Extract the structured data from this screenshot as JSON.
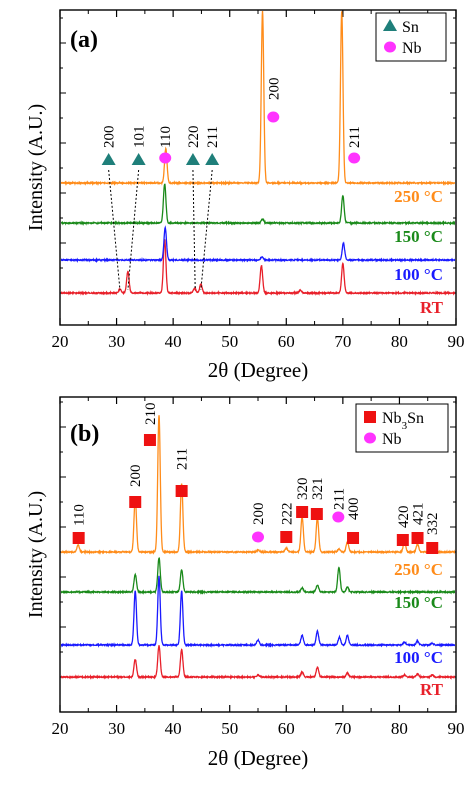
{
  "colors": {
    "RT": "#e8202a",
    "100 °C": "#1a1aff",
    "150 °C": "#1a8a1a",
    "250 °C": "#ff8c1a",
    "sn_marker": "#1f7f7a",
    "nb_marker": "#ff33ff",
    "nb3sn_marker": "#ee1111"
  },
  "chart_data": [
    {
      "type": "line",
      "panel_label": "(a)",
      "xlabel": "2θ (Degree)",
      "ylabel": "Intensity (A.U.)",
      "xlim": [
        20,
        90
      ],
      "xticks": [
        20,
        30,
        40,
        50,
        60,
        70,
        80,
        90
      ],
      "grid": false,
      "legend_position": "top-right",
      "legend": [
        {
          "marker": "triangle",
          "label": "Sn",
          "color_key": "sn_marker"
        },
        {
          "marker": "circle",
          "label": "Nb",
          "color_key": "nb_marker"
        }
      ],
      "series": [
        {
          "name": "RT",
          "offset": 0,
          "peaks": [
            [
              30.6,
              4
            ],
            [
              32.0,
              22
            ],
            [
              38.5,
              55
            ],
            [
              43.8,
              5
            ],
            [
              44.9,
              9
            ],
            [
              55.6,
              28
            ],
            [
              62.5,
              3
            ],
            [
              70.0,
              30
            ]
          ]
        },
        {
          "name": "100 °C",
          "offset": 33,
          "peaks": [
            [
              38.6,
              33
            ],
            [
              55.7,
              3
            ],
            [
              70.1,
              17
            ]
          ]
        },
        {
          "name": "150 °C",
          "offset": 70,
          "peaks": [
            [
              38.5,
              40
            ],
            [
              55.8,
              4
            ],
            [
              70.0,
              28
            ]
          ]
        },
        {
          "name": "250 °C",
          "offset": 110,
          "peaks": [
            [
              38.7,
              35
            ],
            [
              55.8,
              175
            ],
            [
              69.8,
              175
            ]
          ]
        }
      ],
      "annotations": [
        {
          "text": "200",
          "x": 28.6,
          "marker": "triangle"
        },
        {
          "text": "101",
          "x": 33.9,
          "marker": "triangle"
        },
        {
          "text": "110",
          "x": 38.6,
          "marker": "circle"
        },
        {
          "text": "220",
          "x": 43.5,
          "marker": "triangle"
        },
        {
          "text": "211",
          "x": 46.9,
          "marker": "triangle"
        },
        {
          "text": "200",
          "x": 57.7,
          "marker": "circle"
        },
        {
          "text": "211",
          "x": 72.0,
          "marker": "circle"
        }
      ]
    },
    {
      "type": "line",
      "panel_label": "(b)",
      "xlabel": "2θ (Degree)",
      "ylabel": "Intensity (A.U.)",
      "xlim": [
        20,
        90
      ],
      "xticks": [
        20,
        30,
        40,
        50,
        60,
        70,
        80,
        90
      ],
      "grid": false,
      "legend_position": "top-right",
      "legend": [
        {
          "marker": "square",
          "label": "Nb3Sn",
          "color_key": "nb3sn_marker"
        },
        {
          "marker": "circle",
          "label": "Nb",
          "color_key": "nb_marker"
        }
      ],
      "series": [
        {
          "name": "RT",
          "offset": 0,
          "peaks": [
            [
              33.3,
              18
            ],
            [
              37.5,
              32
            ],
            [
              41.5,
              28
            ],
            [
              55.0,
              2
            ],
            [
              62.8,
              5
            ],
            [
              65.5,
              10
            ],
            [
              70.8,
              4
            ],
            [
              80.9,
              2
            ],
            [
              83.2,
              3
            ],
            [
              85.8,
              2
            ]
          ]
        },
        {
          "name": "100 °C",
          "offset": 33,
          "peaks": [
            [
              33.3,
              55
            ],
            [
              37.5,
              70
            ],
            [
              41.5,
              55
            ],
            [
              55.0,
              5
            ],
            [
              62.8,
              10
            ],
            [
              65.5,
              14
            ],
            [
              69.4,
              8
            ],
            [
              70.8,
              10
            ],
            [
              80.9,
              3
            ],
            [
              83.2,
              4
            ],
            [
              85.8,
              2
            ]
          ]
        },
        {
          "name": "150 °C",
          "offset": 86,
          "peaks": [
            [
              33.3,
              18
            ],
            [
              37.5,
              35
            ],
            [
              41.5,
              23
            ],
            [
              62.8,
              4
            ],
            [
              65.5,
              7
            ],
            [
              69.3,
              25
            ],
            [
              70.8,
              5
            ]
          ]
        },
        {
          "name": "250 °C",
          "offset": 125,
          "peaks": [
            [
              23.2,
              7
            ],
            [
              33.3,
              55
            ],
            [
              37.5,
              140
            ],
            [
              41.5,
              70
            ],
            [
              55.0,
              2
            ],
            [
              60.0,
              4
            ],
            [
              62.8,
              36
            ],
            [
              65.5,
              35
            ],
            [
              69.3,
              3
            ],
            [
              70.8,
              10
            ],
            [
              80.9,
              11
            ],
            [
              83.2,
              8
            ],
            [
              85.8,
              5
            ]
          ]
        }
      ],
      "annotations": [
        {
          "text": "110",
          "x": 23.3,
          "marker": "square"
        },
        {
          "text": "200",
          "x": 33.3,
          "marker": "square"
        },
        {
          "text": "210",
          "x": 35.9,
          "marker": "square"
        },
        {
          "text": "211",
          "x": 41.5,
          "marker": "square"
        },
        {
          "text": "222",
          "x": 60.0,
          "marker": "square"
        },
        {
          "text": "320",
          "x": 62.8,
          "marker": "square"
        },
        {
          "text": "321",
          "x": 65.4,
          "marker": "square"
        },
        {
          "text": "211",
          "x": 69.2,
          "marker": "circle"
        },
        {
          "text": "400",
          "x": 71.8,
          "marker": "square"
        },
        {
          "text": "420",
          "x": 80.6,
          "marker": "square"
        },
        {
          "text": "421",
          "x": 83.2,
          "marker": "square"
        },
        {
          "text": "332",
          "x": 85.8,
          "marker": "square"
        },
        {
          "text": "200",
          "x": 55.0,
          "marker": "circle"
        }
      ]
    }
  ]
}
